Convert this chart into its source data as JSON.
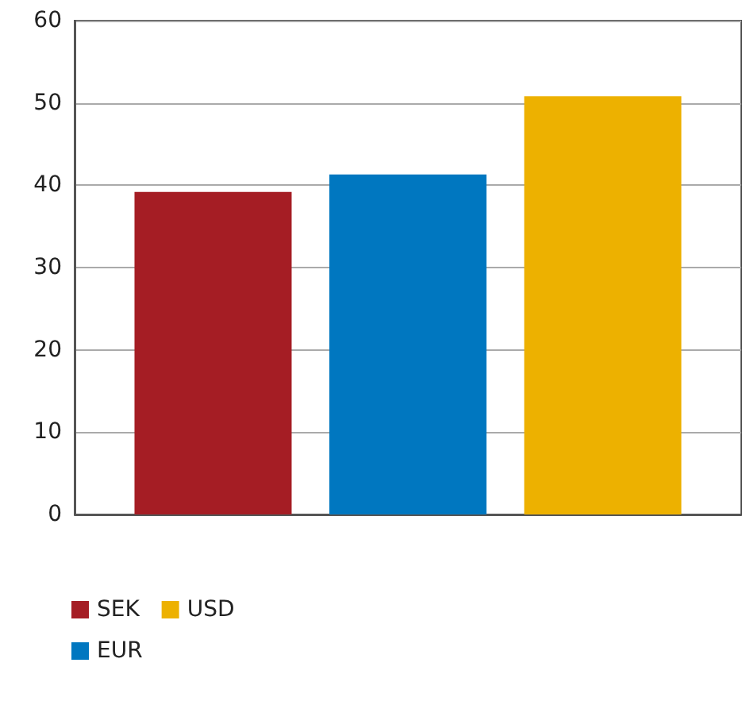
{
  "chart_data": {
    "type": "bar",
    "categories": [
      null
    ],
    "series": [
      {
        "name": "SEK",
        "color": "#a51d24",
        "values": [
          39.2
        ]
      },
      {
        "name": "EUR",
        "color": "#0077c0",
        "values": [
          41.3
        ]
      },
      {
        "name": "USD",
        "color": "#edb100",
        "values": [
          50.8
        ]
      }
    ],
    "ylim": [
      0,
      60
    ],
    "yticks": [
      0,
      10,
      20,
      30,
      40,
      50,
      60
    ],
    "grid": "y",
    "legend": "bottom left"
  }
}
